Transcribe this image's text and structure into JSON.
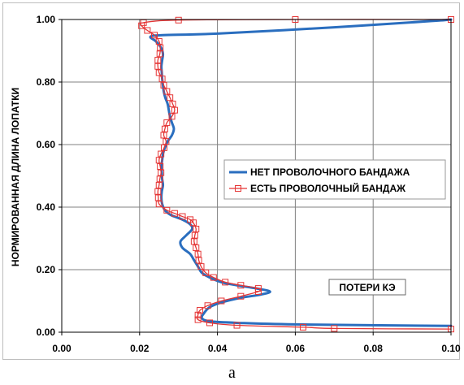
{
  "chart_data": {
    "type": "line",
    "ylabel": "НОРМИРОВАННАЯ ДЛИНА ЛОПАТКИ",
    "xlim": [
      0.0,
      0.1
    ],
    "ylim": [
      0.0,
      1.0
    ],
    "x_ticks": [
      "0.00",
      "0.02",
      "0.04",
      "0.06",
      "0.08",
      "0.10"
    ],
    "y_ticks": [
      "0.00",
      "0.20",
      "0.40",
      "0.60",
      "0.80",
      "1.00"
    ],
    "grid": true,
    "legend_position": "center-right",
    "annotation": "ПОТЕРИ КЭ",
    "series": [
      {
        "name": "НЕТ ПРОВОЛОЧНОГО БАНДАЖА",
        "color": "#2a6ebf",
        "marker": "none",
        "points": [
          [
            0.1,
            0.02
          ],
          [
            0.06,
            0.025
          ],
          [
            0.045,
            0.03
          ],
          [
            0.038,
            0.035
          ],
          [
            0.036,
            0.045
          ],
          [
            0.0365,
            0.06
          ],
          [
            0.038,
            0.08
          ],
          [
            0.041,
            0.095
          ],
          [
            0.046,
            0.11
          ],
          [
            0.051,
            0.12
          ],
          [
            0.0535,
            0.13
          ],
          [
            0.05,
            0.14
          ],
          [
            0.045,
            0.15
          ],
          [
            0.041,
            0.16
          ],
          [
            0.038,
            0.175
          ],
          [
            0.036,
            0.19
          ],
          [
            0.035,
            0.21
          ],
          [
            0.034,
            0.23
          ],
          [
            0.033,
            0.25
          ],
          [
            0.031,
            0.27
          ],
          [
            0.0305,
            0.29
          ],
          [
            0.032,
            0.31
          ],
          [
            0.0335,
            0.33
          ],
          [
            0.033,
            0.345
          ],
          [
            0.031,
            0.36
          ],
          [
            0.028,
            0.375
          ],
          [
            0.0265,
            0.39
          ],
          [
            0.0258,
            0.41
          ],
          [
            0.0256,
            0.43
          ],
          [
            0.0257,
            0.45
          ],
          [
            0.026,
            0.47
          ],
          [
            0.0258,
            0.49
          ],
          [
            0.0257,
            0.51
          ],
          [
            0.0256,
            0.53
          ],
          [
            0.0258,
            0.55
          ],
          [
            0.026,
            0.57
          ],
          [
            0.0265,
            0.59
          ],
          [
            0.0272,
            0.61
          ],
          [
            0.0283,
            0.63
          ],
          [
            0.0288,
            0.65
          ],
          [
            0.0283,
            0.67
          ],
          [
            0.0278,
            0.69
          ],
          [
            0.0275,
            0.71
          ],
          [
            0.0272,
            0.73
          ],
          [
            0.0266,
            0.75
          ],
          [
            0.0262,
            0.77
          ],
          [
            0.026,
            0.79
          ],
          [
            0.0258,
            0.81
          ],
          [
            0.0257,
            0.83
          ],
          [
            0.0256,
            0.85
          ],
          [
            0.0258,
            0.87
          ],
          [
            0.026,
            0.89
          ],
          [
            0.0255,
            0.91
          ],
          [
            0.0242,
            0.93
          ],
          [
            0.0228,
            0.945
          ],
          [
            0.026,
            0.95
          ],
          [
            0.04,
            0.955
          ],
          [
            0.07,
            0.975
          ],
          [
            0.095,
            0.995
          ],
          [
            0.1,
            1.0
          ]
        ]
      },
      {
        "name": "ЕСТЬ ПРОВОЛОЧНЫЙ БАНДАЖ",
        "color": "#e53535",
        "marker": "square",
        "points": [
          [
            0.1,
            0.01
          ],
          [
            0.07,
            0.012
          ],
          [
            0.062,
            0.016
          ],
          [
            0.045,
            0.022
          ],
          [
            0.038,
            0.03
          ],
          [
            0.035,
            0.04
          ],
          [
            0.035,
            0.055
          ],
          [
            0.0355,
            0.07
          ],
          [
            0.0375,
            0.085
          ],
          [
            0.041,
            0.1
          ],
          [
            0.046,
            0.115
          ],
          [
            0.0505,
            0.13
          ],
          [
            0.0505,
            0.14
          ],
          [
            0.046,
            0.15
          ],
          [
            0.042,
            0.16
          ],
          [
            0.039,
            0.175
          ],
          [
            0.037,
            0.19
          ],
          [
            0.0358,
            0.21
          ],
          [
            0.0352,
            0.23
          ],
          [
            0.035,
            0.25
          ],
          [
            0.0345,
            0.27
          ],
          [
            0.034,
            0.29
          ],
          [
            0.0342,
            0.31
          ],
          [
            0.0345,
            0.33
          ],
          [
            0.0338,
            0.35
          ],
          [
            0.033,
            0.36
          ],
          [
            0.031,
            0.37
          ],
          [
            0.029,
            0.38
          ],
          [
            0.027,
            0.39
          ],
          [
            0.025,
            0.41
          ],
          [
            0.0248,
            0.43
          ],
          [
            0.0247,
            0.45
          ],
          [
            0.025,
            0.47
          ],
          [
            0.0252,
            0.49
          ],
          [
            0.0255,
            0.51
          ],
          [
            0.0253,
            0.53
          ],
          [
            0.025,
            0.55
          ],
          [
            0.0255,
            0.57
          ],
          [
            0.0263,
            0.59
          ],
          [
            0.0268,
            0.61
          ],
          [
            0.0262,
            0.63
          ],
          [
            0.0265,
            0.65
          ],
          [
            0.027,
            0.67
          ],
          [
            0.0283,
            0.69
          ],
          [
            0.029,
            0.71
          ],
          [
            0.0285,
            0.73
          ],
          [
            0.0278,
            0.75
          ],
          [
            0.027,
            0.77
          ],
          [
            0.0262,
            0.79
          ],
          [
            0.0258,
            0.81
          ],
          [
            0.025,
            0.83
          ],
          [
            0.0247,
            0.85
          ],
          [
            0.0247,
            0.87
          ],
          [
            0.0252,
            0.89
          ],
          [
            0.0253,
            0.91
          ],
          [
            0.025,
            0.93
          ],
          [
            0.0238,
            0.95
          ],
          [
            0.022,
            0.965
          ],
          [
            0.0205,
            0.98
          ],
          [
            0.021,
            0.99
          ],
          [
            0.03,
            0.998
          ],
          [
            0.06,
            1.0
          ],
          [
            0.1,
            1.0
          ]
        ]
      }
    ]
  },
  "caption": "а"
}
